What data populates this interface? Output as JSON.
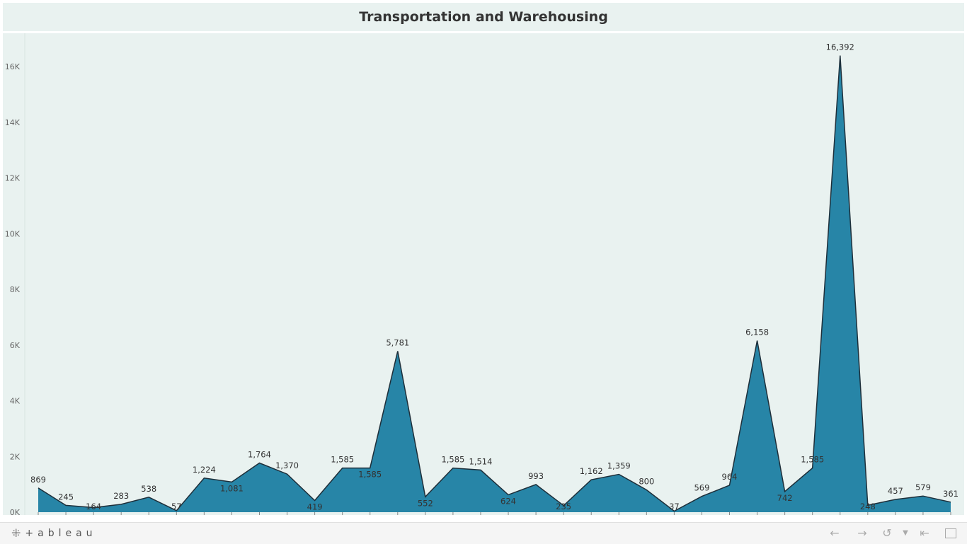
{
  "title": "Transportation and Warehousing",
  "footer": {
    "brand": "+ableau",
    "brand_icon": "tableau-logo-icon",
    "buttons": [
      "undo-icon",
      "redo-icon",
      "revert-icon",
      "share-dropdown-icon",
      "back-to-start-icon",
      "fullscreen-icon"
    ]
  },
  "colors": {
    "background": "#e9f2f0",
    "area_fill": "#2785a7",
    "area_stroke": "#1e2f3a",
    "text": "#333333",
    "axis_text": "#666666"
  },
  "chart_data": {
    "type": "area",
    "title": "Transportation and Warehousing",
    "xlabel": "",
    "ylabel": "",
    "ylim": [
      0,
      16500
    ],
    "y_ticks": [
      0,
      2000,
      4000,
      6000,
      8000,
      10000,
      12000,
      14000,
      16000
    ],
    "y_tick_labels": [
      "0K",
      "2K",
      "4K",
      "6K",
      "8K",
      "10K",
      "12K",
      "14K",
      "16K"
    ],
    "grid": false,
    "values": [
      869,
      245,
      164,
      283,
      538,
      57,
      1224,
      1081,
      1764,
      1370,
      419,
      1585,
      1585,
      5781,
      552,
      1585,
      1514,
      624,
      993,
      235,
      1162,
      1359,
      800,
      37,
      569,
      964,
      6158,
      742,
      1585,
      16392,
      248,
      457,
      579,
      361
    ],
    "data_labels": [
      "869",
      "245",
      "164",
      "283",
      "538",
      "57",
      "1,224",
      "1,081",
      "1,764",
      "1,370",
      "419",
      "1,585",
      "1,585",
      "5,781",
      "552",
      "1,585",
      "1,514",
      "624",
      "993",
      "235",
      "1,162",
      "1,359",
      "800",
      "37",
      "569",
      "964",
      "6,158",
      "742",
      "1,585",
      "16,392",
      "248",
      "457",
      "579",
      "361"
    ]
  }
}
